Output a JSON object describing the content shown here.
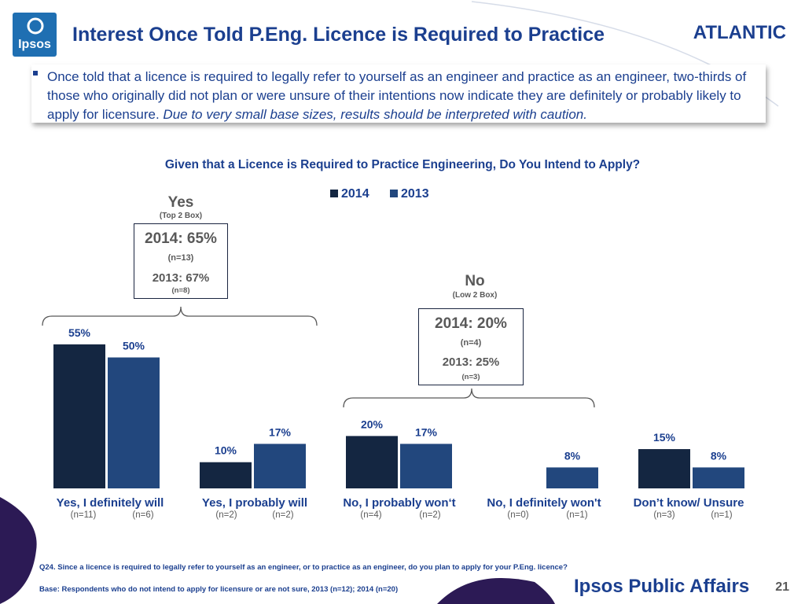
{
  "header": {
    "logo_text": "Ipsos",
    "title": "Interest Once Told P.Eng. Licence is Required to Practice",
    "region": "ATLANTIC"
  },
  "summary": {
    "text": "Once told that a licence is required to legally refer to yourself as an engineer and practice as an engineer, two-thirds of those who originally did not plan or were unsure of their intentions now indicate they are definitely or probably likely to apply for licensure.",
    "caution": "Due to very small base sizes, results should be interpreted with caution."
  },
  "colors": {
    "2014": "#142641",
    "2013": "#22477d",
    "text_blue": "#1b3f8f"
  },
  "chart_data": {
    "type": "bar",
    "title": "Given that a Licence is Required to Practice Engineering, Do You Intend to Apply?",
    "categories": [
      "Yes, I definitely will",
      "Yes, I probably will",
      "No, I probably won‘t",
      "No, I definitely won't",
      "Don’t know/ Unsure"
    ],
    "series": [
      {
        "name": "2014",
        "values": [
          55,
          10,
          20,
          null,
          15
        ],
        "labels": [
          "55%",
          "10%",
          "20%",
          "",
          "15%"
        ],
        "n": [
          "(n=11)",
          "(n=2)",
          "(n=4)",
          "(n=0)",
          "(n=3)"
        ]
      },
      {
        "name": "2013",
        "values": [
          50,
          17,
          17,
          8,
          8
        ],
        "labels": [
          "50%",
          "17%",
          "17%",
          "8%",
          "8%"
        ],
        "n": [
          "(n=6)",
          "(n=2)",
          "(n=2)",
          "(n=1)",
          "(n=1)"
        ]
      }
    ],
    "ylim": [
      0,
      55
    ],
    "grid": false,
    "legend_position": "top"
  },
  "groups": {
    "yes": {
      "heading": "Yes",
      "sub": "(Top 2 Box)",
      "line1": "2014: 65%",
      "n1": "(n=13)",
      "line2": "2013: 67%",
      "n2": "(n=8)"
    },
    "no": {
      "heading": "No",
      "sub": "(Low 2 Box)",
      "line1": "2014: 20%",
      "n1": "(n=4)",
      "line2": "2013: 25%",
      "n2": "(n=3)"
    }
  },
  "footer": {
    "question": "Q24. Since a licence is required to legally refer to yourself as an engineer, or to practice as an engineer, do you plan to apply for your P.Eng. licence?",
    "base": "Base:  Respondents who do not intend to apply for licensure or are not sure, 2013 (n=12); 2014 (n=20)",
    "brand": "Ipsos Public Affairs",
    "page_number": "21"
  }
}
